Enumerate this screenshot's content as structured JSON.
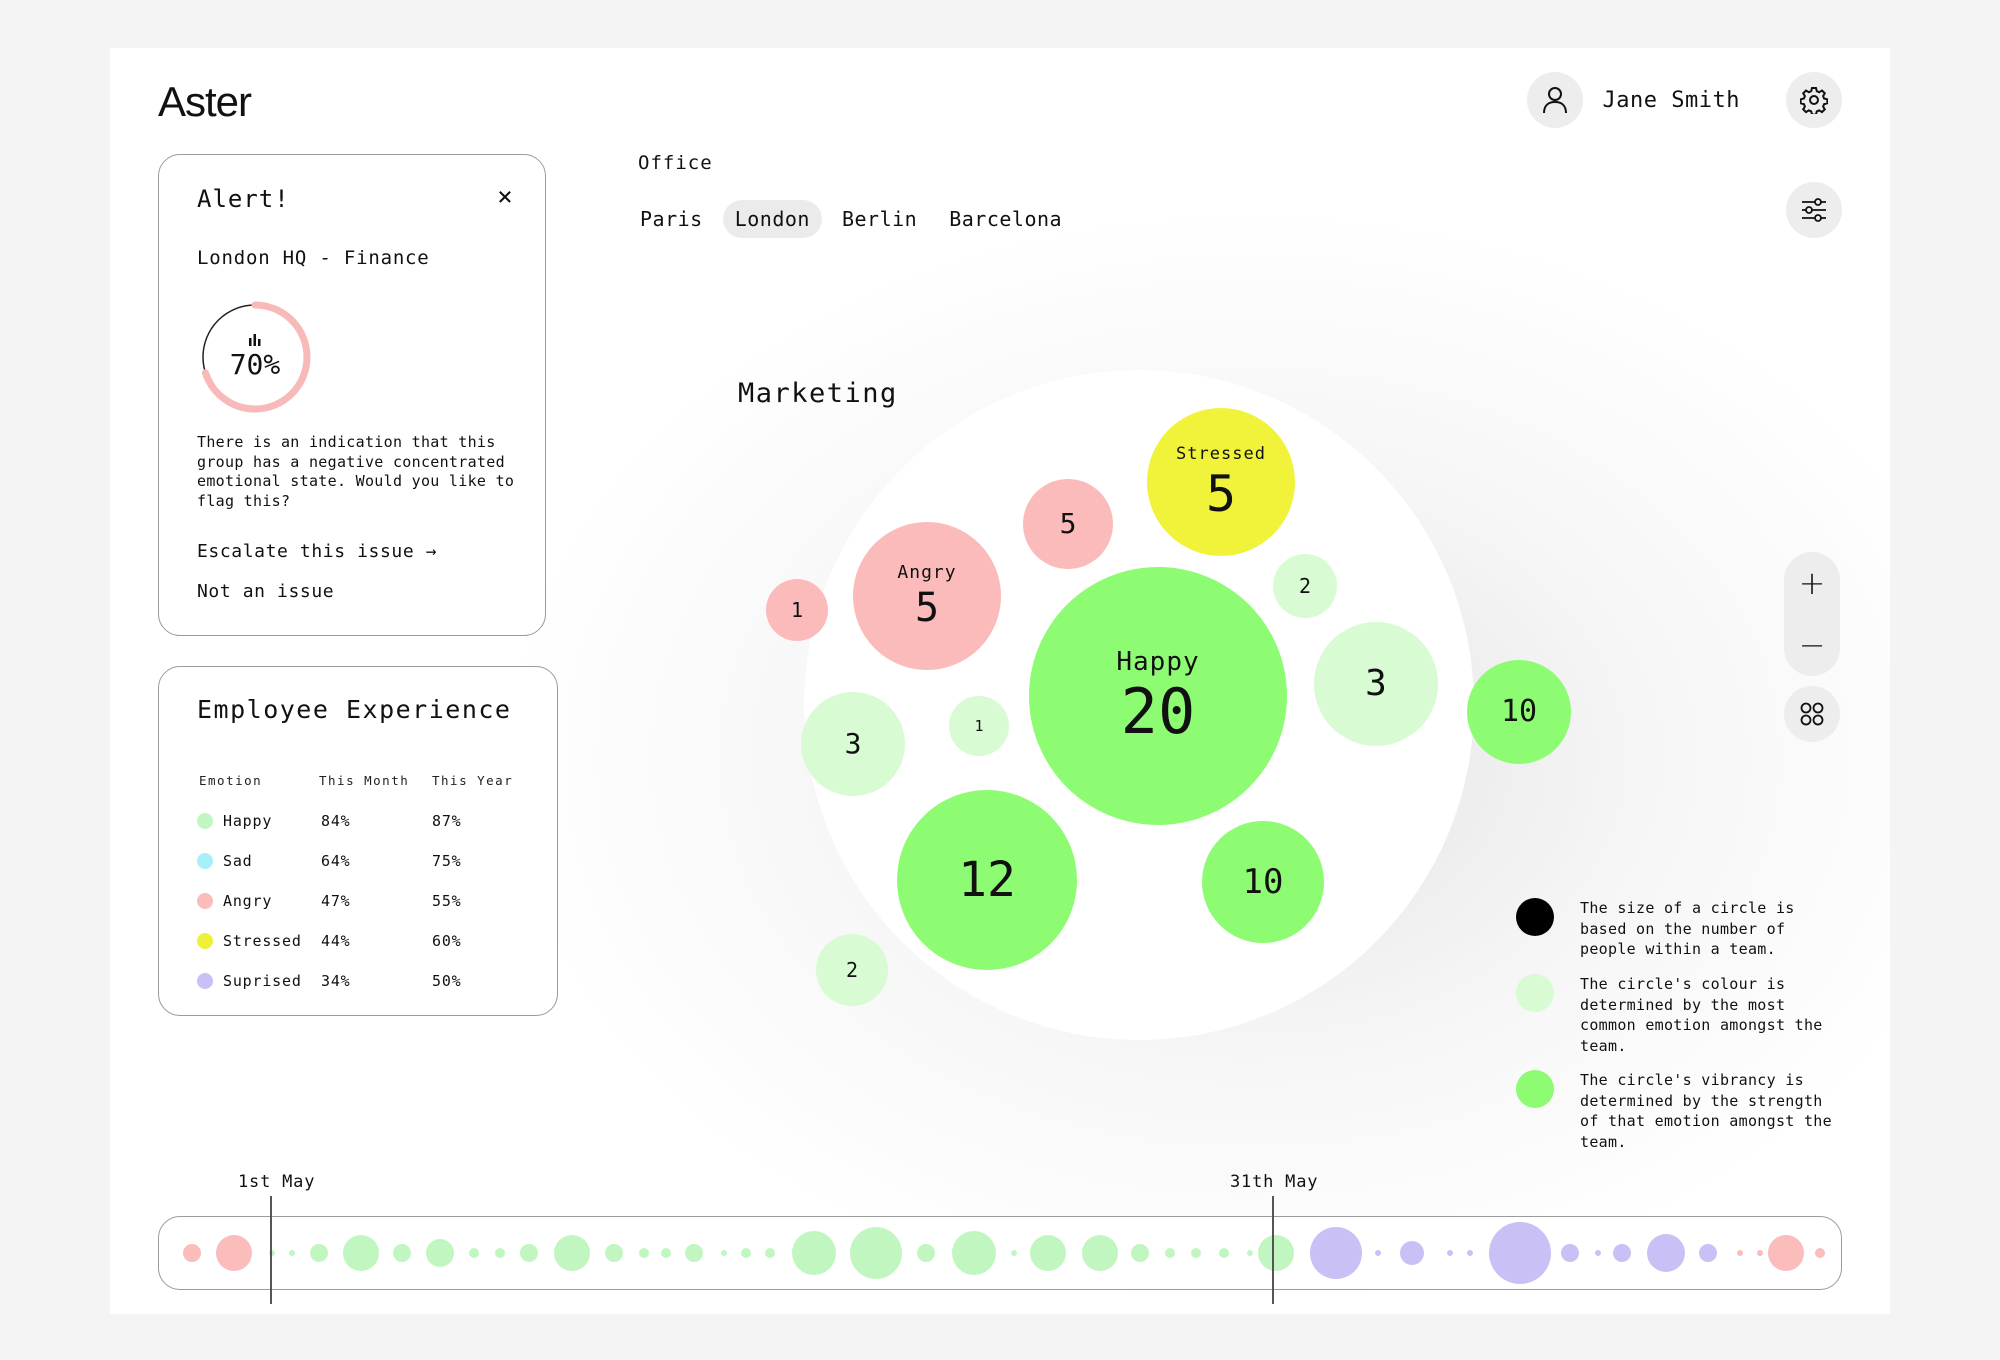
{
  "app": {
    "logo": "Aster"
  },
  "user": {
    "name": "Jane Smith"
  },
  "alert": {
    "title": "Alert!",
    "close": "×",
    "subtitle": "London HQ - Finance",
    "percent_label": "70%",
    "percent": 0.7,
    "message": "There is an indication that this group has a negative concentrated emotional state. Would you like to flag this?",
    "escalate": "Escalate this issue →",
    "dismiss": "Not an issue"
  },
  "experience": {
    "title": "Employee Experience",
    "columns": [
      "Emotion",
      "This Month",
      "This Year"
    ],
    "rows": [
      {
        "emotion": "Happy",
        "month": "84%",
        "year": "87%",
        "color": "#c2f6c0"
      },
      {
        "emotion": "Sad",
        "month": "64%",
        "year": "75%",
        "color": "#a6f0fa"
      },
      {
        "emotion": "Angry",
        "month": "47%",
        "year": "55%",
        "color": "#fbbcbc"
      },
      {
        "emotion": "Stressed",
        "month": "44%",
        "year": "60%",
        "color": "#eef03c"
      },
      {
        "emotion": "Suprised",
        "month": "34%",
        "year": "50%",
        "color": "#c9c1f5"
      }
    ]
  },
  "office": {
    "label": "Office",
    "tabs": [
      "Paris",
      "London",
      "Berlin",
      "Barcelona"
    ],
    "active": "London"
  },
  "team": {
    "name": "Marketing",
    "bubbles": [
      {
        "label": "Happy",
        "value": "20",
        "color": "#8dfc73"
      },
      {
        "label": "Stressed",
        "value": "5",
        "color": "#f0f33a"
      },
      {
        "label": "Angry",
        "value": "5",
        "color": "#fbbbbb"
      },
      {
        "label": "",
        "value": "5",
        "color": "#fbbbbb"
      },
      {
        "label": "",
        "value": "1",
        "color": "#fbbbbb"
      },
      {
        "label": "",
        "value": "2",
        "color": "#d8fbd3"
      },
      {
        "label": "",
        "value": "3",
        "color": "#d8fbd3"
      },
      {
        "label": "",
        "value": "10",
        "color": "#8dfc73"
      },
      {
        "label": "",
        "value": "3",
        "color": "#d8fbd3"
      },
      {
        "label": "",
        "value": "1",
        "color": "#d8fbd3"
      },
      {
        "label": "",
        "value": "12",
        "color": "#8dfc73"
      },
      {
        "label": "",
        "value": "10",
        "color": "#8dfc73"
      },
      {
        "label": "",
        "value": "2",
        "color": "#d8fbd3"
      }
    ]
  },
  "zoom": {
    "in": "+",
    "out": "−"
  },
  "legend": [
    {
      "text": "The size of a circle is based on the number of people within a team.",
      "color": "#000000"
    },
    {
      "text": "The circle's colour is determined by the most common emotion amongst the team.",
      "color": "#d8fbd3"
    },
    {
      "text": "The circle's vibrancy is determined by the strength of that emotion amongst the team.",
      "color": "#8dfc73"
    }
  ],
  "timeline": {
    "start_label": "1st May",
    "end_label": "31th May"
  }
}
